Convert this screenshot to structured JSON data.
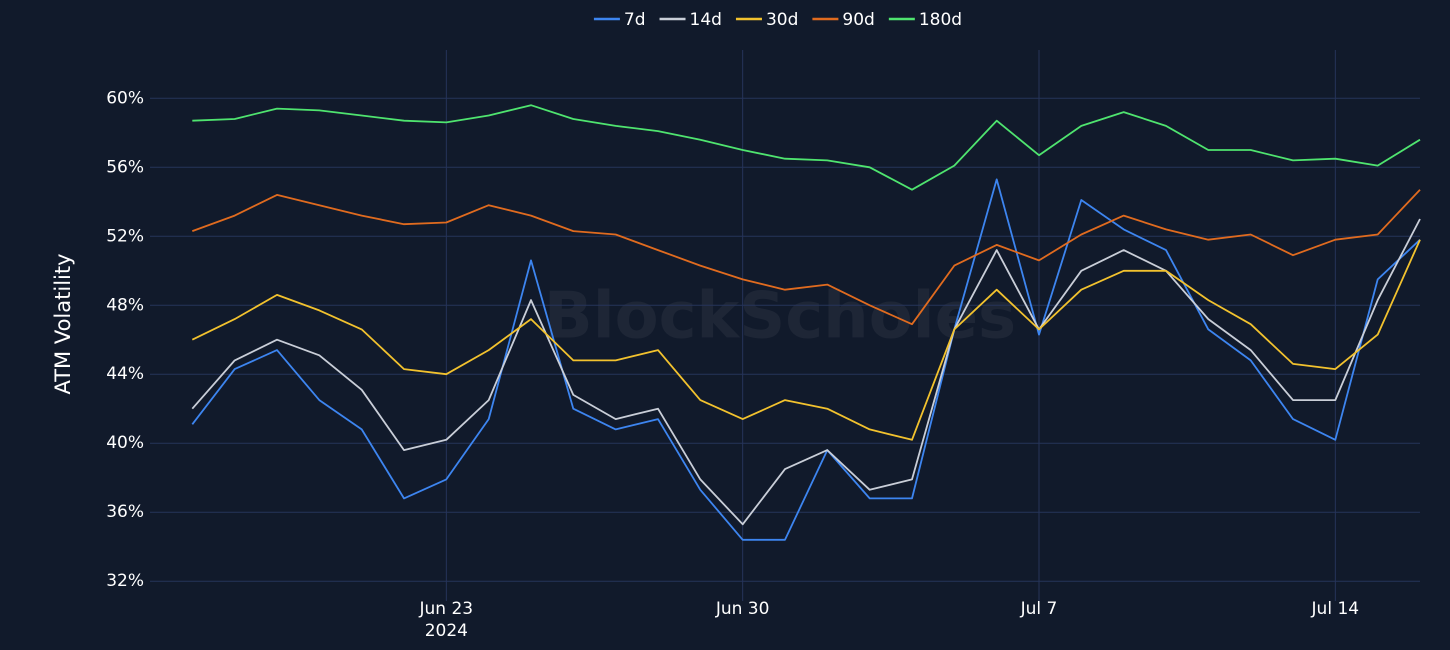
{
  "chart_data": {
    "type": "line",
    "y_label": "ATM Volatility",
    "watermark": "BlockScholes",
    "x": [
      "2024-06-17",
      "2024-06-18",
      "2024-06-19",
      "2024-06-20",
      "2024-06-21",
      "2024-06-22",
      "2024-06-23",
      "2024-06-24",
      "2024-06-25",
      "2024-06-26",
      "2024-06-27",
      "2024-06-28",
      "2024-06-29",
      "2024-06-30",
      "2024-07-01",
      "2024-07-02",
      "2024-07-03",
      "2024-07-04",
      "2024-07-05",
      "2024-07-06",
      "2024-07-07",
      "2024-07-08",
      "2024-07-09",
      "2024-07-10",
      "2024-07-11",
      "2024-07-12",
      "2024-07-13",
      "2024-07-14",
      "2024-07-15",
      "2024-07-16"
    ],
    "xlim": [
      "2024-06-16",
      "2024-07-16"
    ],
    "xticks": [
      {
        "value": "2024-06-23",
        "label": "Jun 23\n2024"
      },
      {
        "value": "2024-06-30",
        "label": "Jun 30"
      },
      {
        "value": "2024-07-07",
        "label": "Jul 7"
      },
      {
        "value": "2024-07-14",
        "label": "Jul 14"
      }
    ],
    "ylim": [
      31.2,
      62.8
    ],
    "yticks": [
      {
        "value": 32,
        "label": "32%"
      },
      {
        "value": 36,
        "label": "36%"
      },
      {
        "value": 40,
        "label": "40%"
      },
      {
        "value": 44,
        "label": "44%"
      },
      {
        "value": 48,
        "label": "48%"
      },
      {
        "value": 52,
        "label": "52%"
      },
      {
        "value": 56,
        "label": "56%"
      },
      {
        "value": 60,
        "label": "60%"
      }
    ],
    "grid": true,
    "legend": "top",
    "series": [
      {
        "name": "7d",
        "color": "#3d85f0",
        "values": [
          41.1,
          44.3,
          45.4,
          42.5,
          40.8,
          36.8,
          37.9,
          41.4,
          50.6,
          42.0,
          40.8,
          41.4,
          37.3,
          34.4,
          34.4,
          39.6,
          36.8,
          36.8,
          46.6,
          55.3,
          46.3,
          54.1,
          52.4,
          51.2,
          46.6,
          44.8,
          41.4,
          40.2,
          49.5,
          51.8
        ]
      },
      {
        "name": "14d",
        "color": "#c9ced8",
        "values": [
          42.0,
          44.8,
          46.0,
          45.1,
          43.1,
          39.6,
          40.2,
          42.5,
          48.3,
          42.8,
          41.4,
          42.0,
          37.9,
          35.3,
          38.5,
          39.6,
          37.3,
          37.9,
          46.6,
          51.2,
          46.6,
          50.0,
          51.2,
          50.0,
          47.2,
          45.4,
          42.5,
          42.5,
          48.3,
          53.0
        ]
      },
      {
        "name": "30d",
        "color": "#f2c22e",
        "values": [
          46.0,
          47.2,
          48.6,
          47.7,
          46.6,
          44.3,
          44.0,
          45.4,
          47.2,
          44.8,
          44.8,
          45.4,
          42.5,
          41.4,
          42.5,
          42.0,
          40.8,
          40.2,
          46.6,
          48.9,
          46.6,
          48.9,
          50.0,
          50.0,
          48.3,
          46.9,
          44.6,
          44.3,
          46.3,
          51.8
        ]
      },
      {
        "name": "90d",
        "color": "#e06b1f",
        "values": [
          52.3,
          53.2,
          54.4,
          53.8,
          53.2,
          52.7,
          52.8,
          53.8,
          53.2,
          52.3,
          52.1,
          51.2,
          50.3,
          49.5,
          48.9,
          49.2,
          48.0,
          46.9,
          50.3,
          51.5,
          50.6,
          52.1,
          53.2,
          52.4,
          51.8,
          52.1,
          50.9,
          51.8,
          52.1,
          54.7
        ]
      },
      {
        "name": "180d",
        "color": "#4fe46f",
        "values": [
          58.7,
          58.8,
          59.4,
          59.3,
          59.0,
          58.7,
          58.6,
          59.0,
          59.6,
          58.8,
          58.4,
          58.1,
          57.6,
          57.0,
          56.5,
          56.4,
          56.0,
          54.7,
          56.1,
          58.7,
          56.7,
          58.4,
          59.2,
          58.4,
          57.0,
          57.0,
          56.4,
          56.5,
          56.1,
          57.6
        ]
      }
    ]
  }
}
